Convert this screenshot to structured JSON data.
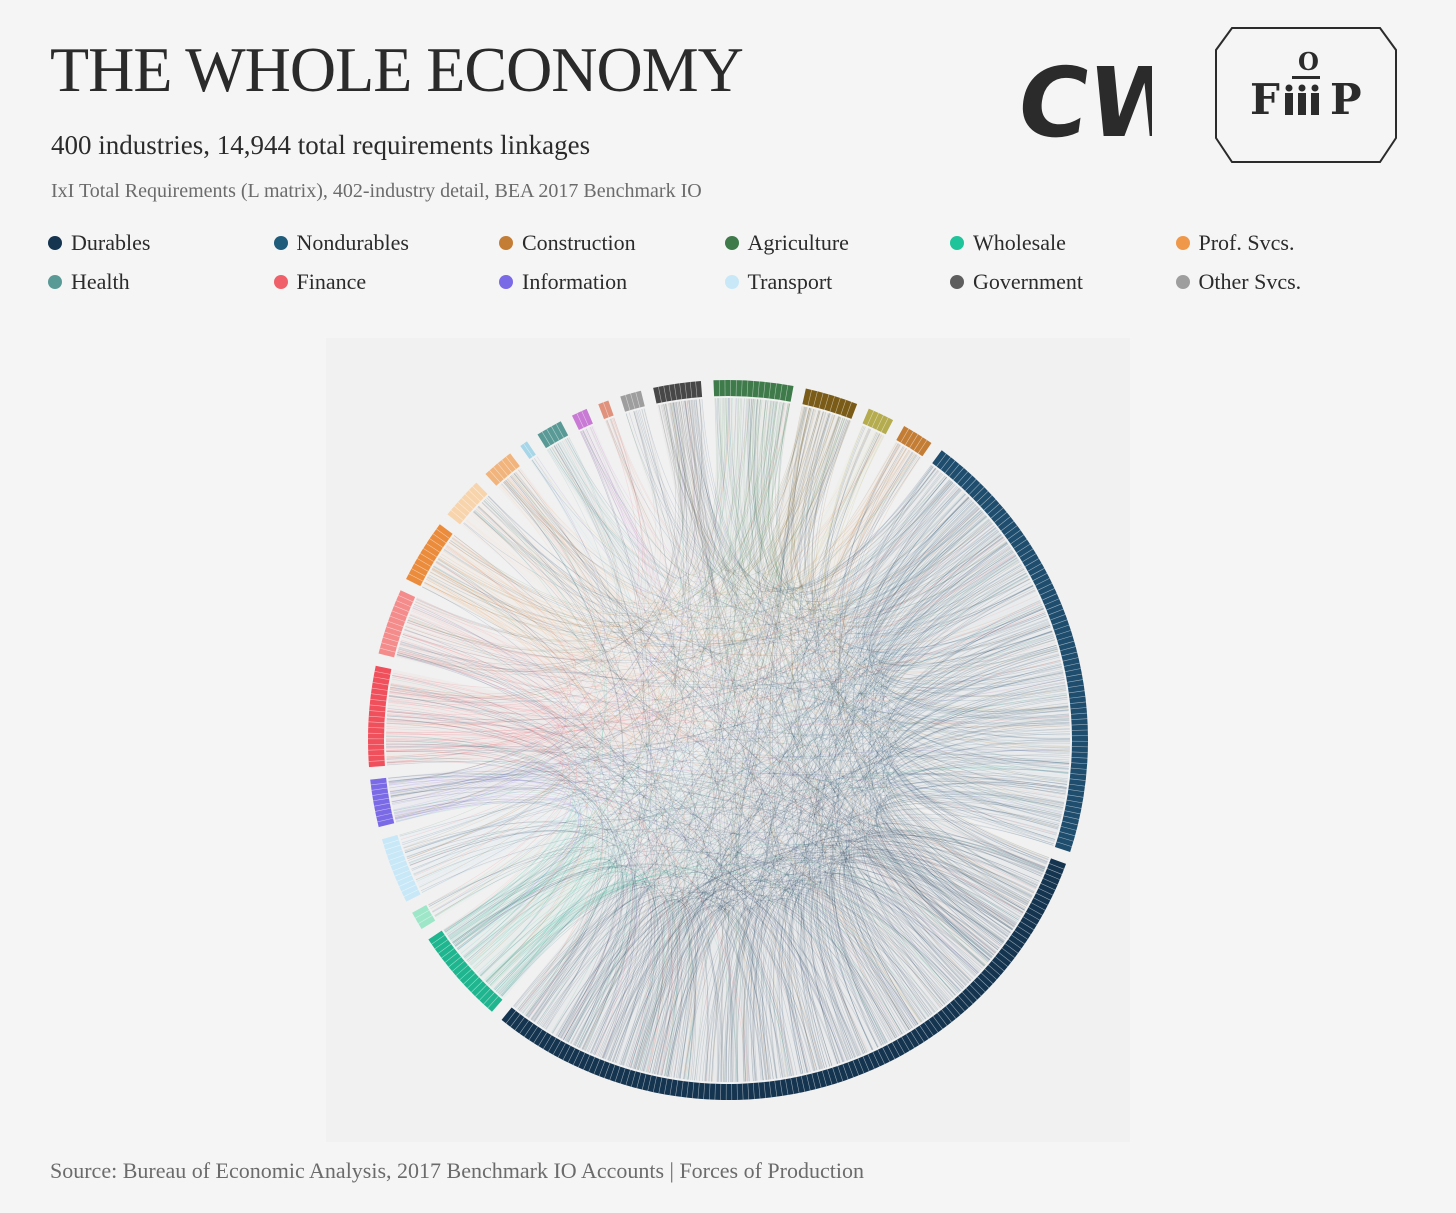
{
  "header": {
    "title": "THE WHOLE ECONOMY",
    "subtitle": "400 industries, 14,944 total requirements linkages",
    "description": "IxI Total Requirements (L matrix), 402-industry detail, BEA 2017 Benchmark IO"
  },
  "logos": {
    "left": {
      "text": "CW",
      "icon": "cw-logo"
    },
    "right": {
      "text_left": "F",
      "text_top": "O",
      "text_right": "P",
      "icon": "fop-logo"
    }
  },
  "legend": [
    {
      "label": "Durables",
      "color": "#14344f"
    },
    {
      "label": "Nondurables",
      "color": "#1f5b7a"
    },
    {
      "label": "Construction",
      "color": "#c47d35"
    },
    {
      "label": "Agriculture",
      "color": "#3e7a4a"
    },
    {
      "label": "Wholesale",
      "color": "#1fc49a"
    },
    {
      "label": "Prof. Svcs.",
      "color": "#f0984a"
    },
    {
      "label": "Health",
      "color": "#5a9a96"
    },
    {
      "label": "Finance",
      "color": "#f0606a"
    },
    {
      "label": "Information",
      "color": "#7b6ae6"
    },
    {
      "label": "Transport",
      "color": "#c8e8f8"
    },
    {
      "label": "Government",
      "color": "#5e5e5e"
    },
    {
      "label": "Other Svcs.",
      "color": "#9e9e9e"
    }
  ],
  "chart_data": {
    "type": "chord",
    "industries": 400,
    "linkages": 14944,
    "segments": [
      {
        "color": "#474747",
        "share": 0.018
      },
      {
        "color": "#3e7a4a",
        "share": 0.03
      },
      {
        "color": "#7a5c18",
        "share": 0.02
      },
      {
        "color": "#b4ac4e",
        "share": 0.01
      },
      {
        "color": "#c47d35",
        "share": 0.012
      },
      {
        "color": "#1f4d6e",
        "share": 0.168
      },
      {
        "color": "#14344f",
        "share": 0.255
      },
      {
        "color": "#1fb58e",
        "share": 0.036
      },
      {
        "color": "#9ee6c8",
        "share": 0.007
      },
      {
        "color": "#c8e8f8",
        "share": 0.025
      },
      {
        "color": "#7b6ae6",
        "share": 0.018
      },
      {
        "color": "#f0505c",
        "share": 0.038
      },
      {
        "color": "#f48c8c",
        "share": 0.025
      },
      {
        "color": "#eb8c3c",
        "share": 0.024
      },
      {
        "color": "#f8d4ac",
        "share": 0.016
      },
      {
        "color": "#f0b47c",
        "share": 0.012
      },
      {
        "color": "#a6d6e8",
        "share": 0.003
      },
      {
        "color": "#5a9a96",
        "share": 0.01
      },
      {
        "color": "#c87ad4",
        "share": 0.006
      },
      {
        "color": "#e0927c",
        "share": 0.004
      },
      {
        "color": "#9e9e9e",
        "share": 0.008
      }
    ]
  },
  "footer": {
    "source": "Source: Bureau of Economic Analysis, 2017 Benchmark IO Accounts | Forces of Production"
  }
}
